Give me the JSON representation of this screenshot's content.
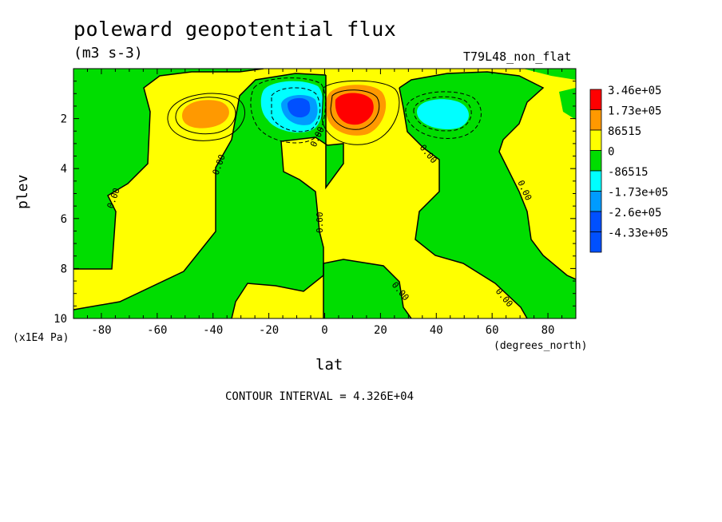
{
  "chart_data": {
    "type": "heatmap",
    "title": "poleward geopotential flux",
    "units": "(m3 s-3)",
    "run_label": "T79L48_non_flat",
    "xlabel": "lat",
    "x_units": "(degrees_north)",
    "ylabel": "plev",
    "y_units": "(x1E4 Pa)",
    "xlim": [
      -90,
      90
    ],
    "ylim": [
      10,
      0
    ],
    "x_ticks": [
      "-80",
      "-60",
      "-40",
      "-20",
      "0",
      "20",
      "40",
      "60",
      "80"
    ],
    "x_tick_values": [
      -80,
      -60,
      -40,
      -20,
      0,
      20,
      40,
      60,
      80
    ],
    "y_ticks": [
      "2",
      "4",
      "6",
      "8",
      "10"
    ],
    "y_tick_values": [
      2,
      4,
      6,
      8,
      10
    ],
    "contour_interval": "CONTOUR INTERVAL = 4.326E+04",
    "legend": {
      "placement": "right",
      "levels": [
        "3.46e+05",
        "1.73e+05",
        "86515",
        "0",
        "-86515",
        "-1.73e+05",
        "-2.6e+05",
        "-4.33e+05"
      ],
      "colors": [
        "#ff0000",
        "#ff9900",
        "#ffff00",
        "#00dd00",
        "#00ffff",
        "#009bff",
        "#0050ff",
        "#0050ff"
      ]
    },
    "contour_labels": [
      "0.00",
      "0.00",
      "0.00",
      "0.00",
      "0.00",
      "0.00",
      "0.00",
      "0.00"
    ],
    "features": [
      {
        "sign": "positive",
        "lat": 10,
        "plev": 1.8,
        "peak": 346000.0
      },
      {
        "sign": "negative",
        "lat": -10,
        "plev": 1.7,
        "peak": -433000.0
      },
      {
        "sign": "positive",
        "lat": -42,
        "plev": 2.0,
        "peak": 173000.0
      },
      {
        "sign": "negative",
        "lat": 43,
        "plev": 2.0,
        "peak": -173000.0
      }
    ]
  }
}
